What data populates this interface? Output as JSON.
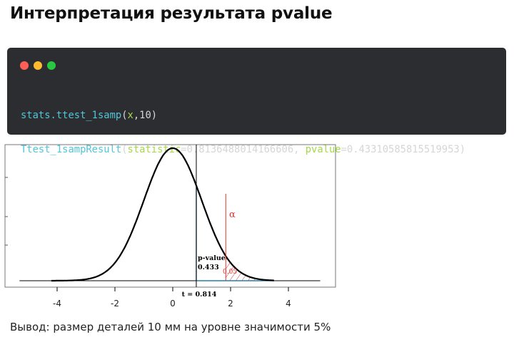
{
  "page": {
    "title": "Интерпретация результата pvalue",
    "conclusion": "Вывод: размер деталей 10 мм на уровне значимости 5%"
  },
  "code_window": {
    "dot_colors": [
      "#ff5f57",
      "#febc2e",
      "#28c840"
    ],
    "line1": {
      "prefix": "stats.",
      "func": "ttest_1samp",
      "open": "(",
      "arg": "x",
      "rest": ",10)"
    },
    "line2": {
      "func": "Ttest_1sampResult",
      "open": "(",
      "k1": "statistic",
      "v1": "=0.8136488014166606, ",
      "k2": "pvalue",
      "v2": "=0.43310585815519953)"
    },
    "colors": {
      "background": "#2b2d30",
      "text": "#d6d6d6",
      "func": "#52c5d8",
      "keyword": "#a6d84b"
    }
  },
  "plot": {
    "x_ticks": [
      "-4",
      "-2",
      "0",
      "2",
      "4"
    ],
    "alpha_label": "α",
    "pvalue_label_1": "p-value",
    "pvalue_label_2": "0.433",
    "alpha_value_label": "0.05",
    "t_label": "t = 0.814",
    "t_value": 0.814,
    "critical_value": 1.833,
    "x_range": [
      -5.5,
      5.2
    ],
    "colors": {
      "curve": "#000000",
      "shade_line": "#2a7fa0",
      "alpha": "#e0312f"
    }
  }
}
